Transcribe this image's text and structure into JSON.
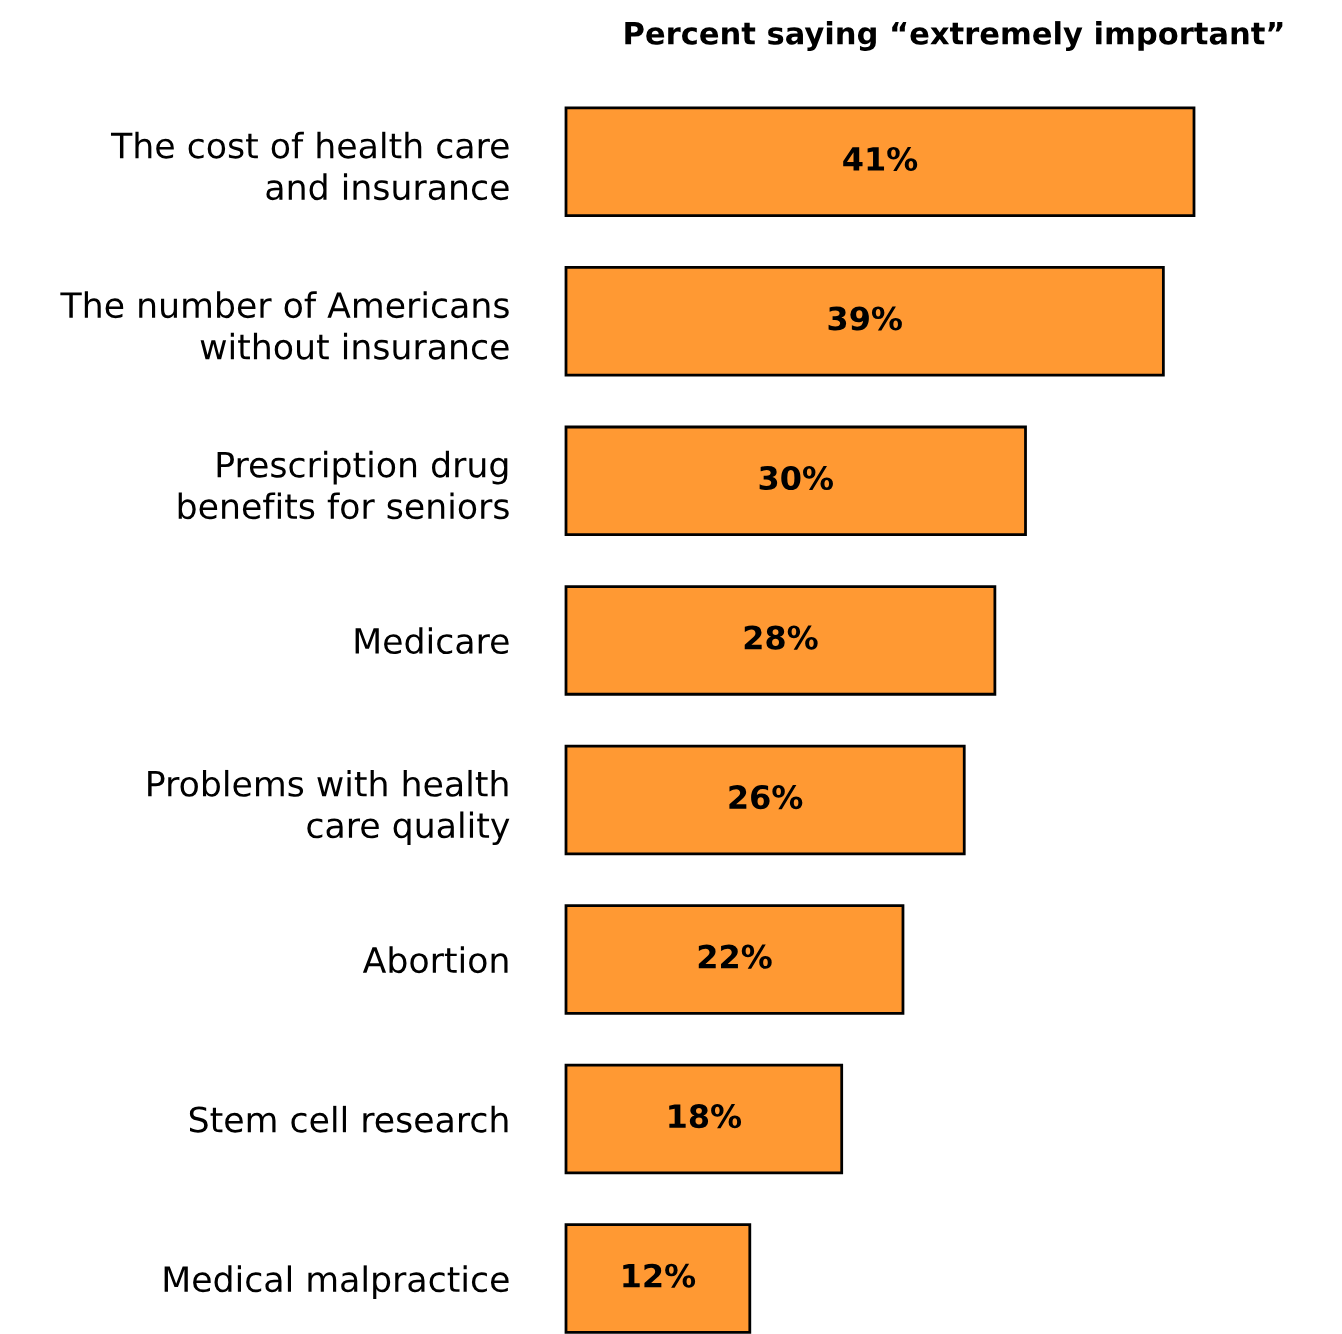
{
  "chart_data": {
    "type": "bar",
    "orientation": "horizontal",
    "title": "Percent saying “extremely important”",
    "categories": [
      "The cost of health care\nand insurance",
      "The number of Americans\nwithout insurance",
      "Prescription drug\nbenefits for seniors",
      "Medicare",
      "Problems with health\ncare quality",
      "Abortion",
      "Stem cell research",
      "Medical malpractice"
    ],
    "values": [
      41,
      39,
      30,
      28,
      26,
      22,
      18,
      12
    ],
    "value_labels": [
      "41%",
      "39%",
      "30%",
      "28%",
      "26%",
      "22%",
      "18%",
      "12%"
    ],
    "color": "#ff9933"
  }
}
